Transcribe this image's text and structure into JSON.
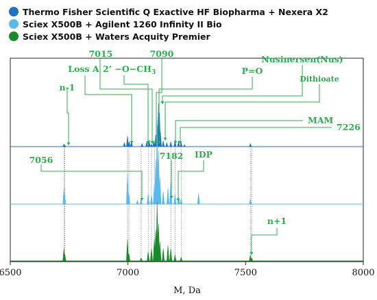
{
  "chart_data": {
    "type": "mass-spectrum",
    "xlabel": "M, Da",
    "xlim": [
      6500,
      8000
    ],
    "x_ticks": [
      6500,
      7000,
      7500,
      8000
    ],
    "legend": [
      {
        "label": "Thermo Fisher Scientific Q Exactive HF Biopharma + Nexera X2",
        "color": "#1f72c4"
      },
      {
        "label": "Sciex X500B + Agilent 1260 Infinity II Bio",
        "color": "#5bb9ea"
      },
      {
        "label": "Sciex X500B + Waters Acquity Premier",
        "color": "#1a8a2a"
      }
    ],
    "annotation_color": "#2bae4f",
    "series": [
      {
        "name": "Thermo Fisher Scientific Q Exactive HF Biopharma + Nexera X2",
        "color": "#1f72c4",
        "peaks": [
          [
            6728,
            0.05
          ],
          [
            6732,
            0.03
          ],
          [
            6985,
            0.08
          ],
          [
            6998,
            0.22
          ],
          [
            7005,
            0.1
          ],
          [
            7015,
            0.12
          ],
          [
            7060,
            0.06
          ],
          [
            7080,
            0.1
          ],
          [
            7090,
            0.14
          ],
          [
            7100,
            0.05
          ],
          [
            7110,
            0.12
          ],
          [
            7118,
            0.25
          ],
          [
            7126,
            0.44
          ],
          [
            7130,
            0.9
          ],
          [
            7134,
            0.7
          ],
          [
            7138,
            0.3
          ],
          [
            7150,
            0.12
          ],
          [
            7165,
            0.08
          ],
          [
            7182,
            0.1
          ],
          [
            7200,
            0.14
          ],
          [
            7215,
            0.12
          ],
          [
            7226,
            0.08
          ],
          [
            7240,
            0.04
          ],
          [
            7520,
            0.06
          ]
        ]
      },
      {
        "name": "Sciex X500B + Agilent 1260 Infinity II Bio",
        "color": "#5bb9ea",
        "peaks": [
          [
            6728,
            0.18
          ],
          [
            6732,
            0.08
          ],
          [
            6998,
            0.35
          ],
          [
            7004,
            0.12
          ],
          [
            7040,
            0.04
          ],
          [
            7056,
            0.06
          ],
          [
            7086,
            0.12
          ],
          [
            7100,
            0.1
          ],
          [
            7112,
            0.22
          ],
          [
            7118,
            0.5
          ],
          [
            7124,
            0.95
          ],
          [
            7130,
            0.6
          ],
          [
            7136,
            0.3
          ],
          [
            7150,
            0.14
          ],
          [
            7170,
            0.18
          ],
          [
            7182,
            0.25
          ],
          [
            7200,
            0.12
          ],
          [
            7215,
            0.08
          ],
          [
            7226,
            0.06
          ],
          [
            7300,
            0.12
          ],
          [
            7520,
            0.06
          ]
        ]
      },
      {
        "name": "Sciex X500B + Waters Acquity Premier",
        "color": "#1a8a2a",
        "peaks": [
          [
            6728,
            0.2
          ],
          [
            6732,
            0.1
          ],
          [
            6998,
            0.35
          ],
          [
            7004,
            0.12
          ],
          [
            7056,
            0.05
          ],
          [
            7086,
            0.15
          ],
          [
            7100,
            0.2
          ],
          [
            7112,
            0.35
          ],
          [
            7118,
            0.5
          ],
          [
            7124,
            0.95
          ],
          [
            7130,
            0.6
          ],
          [
            7136,
            0.3
          ],
          [
            7150,
            0.2
          ],
          [
            7170,
            0.25
          ],
          [
            7182,
            0.2
          ],
          [
            7200,
            0.1
          ],
          [
            7226,
            0.06
          ],
          [
            7520,
            0.1
          ],
          [
            7526,
            0.05
          ]
        ]
      }
    ],
    "annotations": [
      {
        "text": "n-1",
        "peak": 6728,
        "series": 0
      },
      {
        "text": "Loss A",
        "peak": 7000,
        "series": 0
      },
      {
        "text": "7015",
        "peak": 7015,
        "series": 0
      },
      {
        "text": "2’ −O−CH",
        "subscript": "3",
        "peak": 7085,
        "series": 0
      },
      {
        "text": "7090",
        "peak": 7100,
        "series": 0
      },
      {
        "text": "P=O",
        "peak": 7110,
        "series": 0
      },
      {
        "text": "Nusinersen(Nus)",
        "peak": 7126,
        "series": 0
      },
      {
        "text": "Dithioate",
        "peak": 7140,
        "series": 0
      },
      {
        "text": "MAM",
        "peak": 7218,
        "series": 0
      },
      {
        "text": "7226",
        "peak": 7226,
        "series": 0
      },
      {
        "text": "7056",
        "peak": 7056,
        "series": 1
      },
      {
        "text": "7182",
        "peak": 7182,
        "series": 1
      },
      {
        "text": "IDP",
        "peak": 7172,
        "series": 1
      },
      {
        "text": "n+1",
        "peak": 7520,
        "series": 2
      }
    ]
  }
}
